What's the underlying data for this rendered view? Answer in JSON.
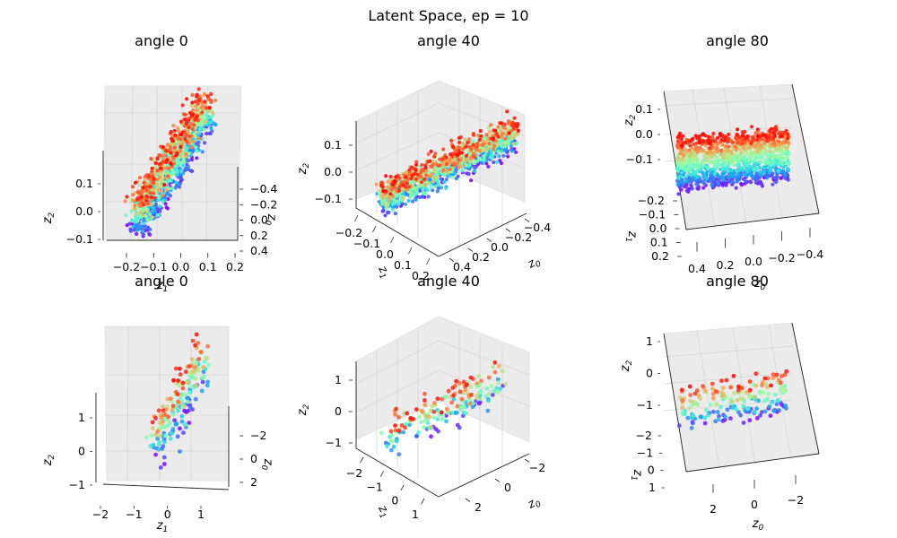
{
  "suptitle": "Latent Space, ep = 10",
  "chart_data": [
    {
      "type": "scatter",
      "subplot": "angle 0 (dense)",
      "title": "angle 0",
      "xlabel": "z1",
      "ylabel": "z0",
      "zlabel": "z2",
      "xlim": [
        -0.3,
        0.25
      ],
      "ylim": [
        -0.45,
        0.45
      ],
      "zlim": [
        -0.12,
        0.16
      ],
      "xticks": [
        "−0.2",
        "−0.1",
        "0.0",
        "0.1",
        "0.2"
      ],
      "yticks": [
        "−0.4",
        "−0.2",
        "0.0",
        "0.2",
        "0.4"
      ],
      "zticks": [
        "−0.1",
        "0.0",
        "0.1"
      ],
      "colormap": "rainbow",
      "n_points": 2000
    },
    {
      "type": "scatter",
      "subplot": "angle 40 (dense)",
      "title": "angle 40",
      "xlabel": "z1",
      "ylabel": "z0",
      "zlabel": "z2",
      "xlim": [
        -0.3,
        0.25
      ],
      "ylim": [
        -0.45,
        0.45
      ],
      "zlim": [
        -0.12,
        0.16
      ],
      "xticks": [
        "−0.2",
        "−0.1",
        "0.0",
        "0.1",
        "0.2"
      ],
      "yticks": [
        "−0.4",
        "−0.2",
        "0.0",
        "0.2",
        "0.4"
      ],
      "zticks": [
        "−0.1",
        "0.0",
        "0.1"
      ],
      "colormap": "rainbow",
      "n_points": 2000
    },
    {
      "type": "scatter",
      "subplot": "angle 80 (dense)",
      "title": "angle 80",
      "xlabel": "z0",
      "ylabel": "z1",
      "zlabel": "z2",
      "xlim": [
        -0.45,
        0.45
      ],
      "ylim": [
        -0.25,
        0.25
      ],
      "zlim": [
        -0.15,
        0.15
      ],
      "xticks": [
        "0.4",
        "0.2",
        "0.0",
        "−0.2",
        "−0.4"
      ],
      "yticks": [
        "−0.2",
        "−0.1",
        "0.0",
        "0.1",
        "0.2"
      ],
      "zticks": [
        "−0.1",
        "0.0",
        "0.1"
      ],
      "colormap": "rainbow",
      "n_points": 2000
    },
    {
      "type": "scatter",
      "subplot": "angle 0 (sparse)",
      "title": "angle 0",
      "xlabel": "z1",
      "ylabel": "z0",
      "zlabel": "z2",
      "xlim": [
        -2.3,
        1.6
      ],
      "ylim": [
        -2.5,
        2.5
      ],
      "zlim": [
        -1.2,
        1.6
      ],
      "xticks": [
        "−2",
        "−1",
        "0",
        "1"
      ],
      "yticks": [
        "−2",
        "0",
        "2"
      ],
      "zticks": [
        "−1",
        "0",
        "1"
      ],
      "colormap": "rainbow",
      "n_points": 250
    },
    {
      "type": "scatter",
      "subplot": "angle 40 (sparse)",
      "title": "angle 40",
      "xlabel": "z1",
      "ylabel": "z0",
      "zlabel": "z2",
      "xlim": [
        -2.3,
        1.6
      ],
      "ylim": [
        -2.5,
        2.5
      ],
      "zlim": [
        -1.2,
        1.6
      ],
      "xticks": [
        "−2",
        "−1",
        "0",
        "1"
      ],
      "yticks": [
        "−2",
        "0",
        "2"
      ],
      "zticks": [
        "−1",
        "0",
        "1"
      ],
      "colormap": "rainbow",
      "n_points": 250
    },
    {
      "type": "scatter",
      "subplot": "angle 80 (sparse)",
      "title": "angle 80",
      "xlabel": "z0",
      "ylabel": "z1",
      "zlabel": "z2",
      "xlim": [
        -2.5,
        2.5
      ],
      "ylim": [
        -2.2,
        1.2
      ],
      "zlim": [
        -1.6,
        1.5
      ],
      "xticks": [
        "2",
        "0",
        "−2"
      ],
      "yticks": [
        "−2",
        "−1",
        "0",
        "1"
      ],
      "zticks": [
        "−1",
        "0",
        "1"
      ],
      "colormap": "rainbow",
      "n_points": 250
    }
  ]
}
